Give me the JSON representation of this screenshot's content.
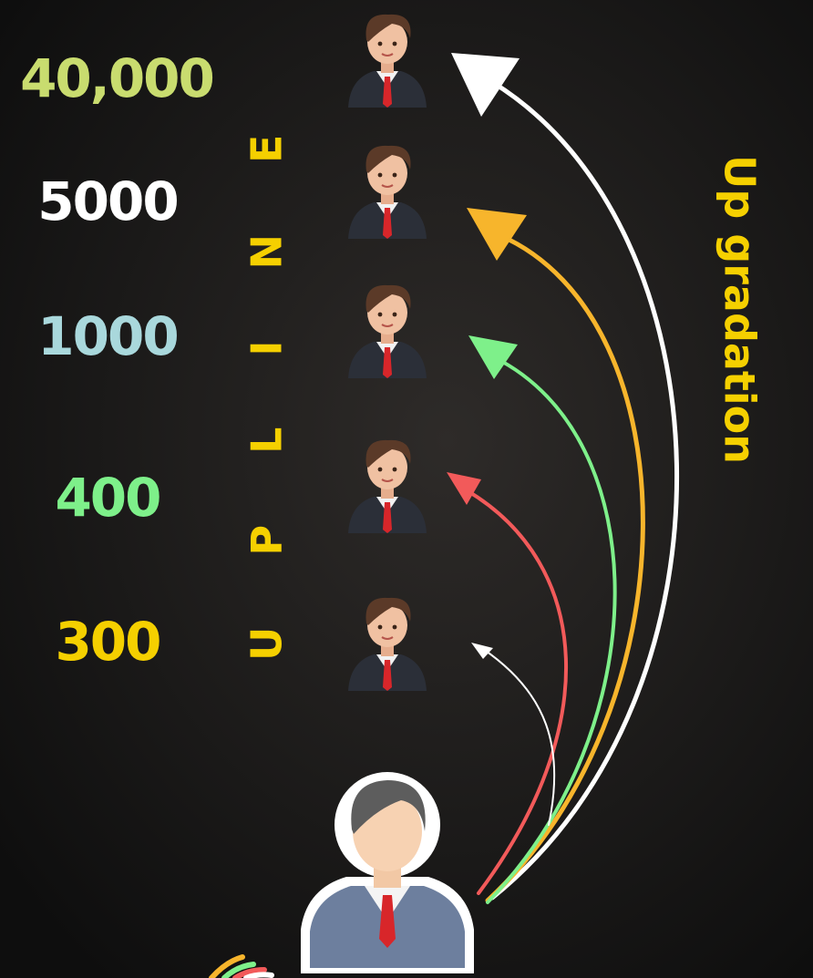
{
  "levels": [
    {
      "amount": "40,000"
    },
    {
      "amount": "5000"
    },
    {
      "amount": "1000"
    },
    {
      "amount": "400"
    },
    {
      "amount": "300"
    }
  ],
  "vertical_word": "UPLINE",
  "side_label": "Up gradation"
}
